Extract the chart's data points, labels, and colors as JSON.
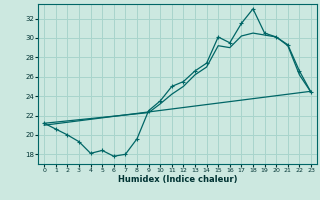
{
  "xlabel": "Humidex (Indice chaleur)",
  "bg_color": "#cce8e0",
  "grid_color": "#a8d4cc",
  "line_color": "#006666",
  "xlim": [
    -0.5,
    23.5
  ],
  "ylim": [
    17.0,
    33.5
  ],
  "yticks": [
    18,
    20,
    22,
    24,
    26,
    28,
    30,
    32
  ],
  "xticks": [
    0,
    1,
    2,
    3,
    4,
    5,
    6,
    7,
    8,
    9,
    10,
    11,
    12,
    13,
    14,
    15,
    16,
    17,
    18,
    19,
    20,
    21,
    22,
    23
  ],
  "main_x": [
    0,
    1,
    2,
    3,
    4,
    5,
    6,
    7,
    8,
    9,
    10,
    11,
    12,
    13,
    14,
    15,
    16,
    17,
    18,
    19,
    20,
    21,
    22,
    23
  ],
  "main_y": [
    21.2,
    20.6,
    20.0,
    19.3,
    18.1,
    18.4,
    17.8,
    18.0,
    19.6,
    22.5,
    23.5,
    25.0,
    25.5,
    26.6,
    27.4,
    30.1,
    29.5,
    31.5,
    33.0,
    30.5,
    30.1,
    29.3,
    26.6,
    24.4
  ],
  "envelope_x": [
    0,
    9,
    10,
    11,
    12,
    13,
    14,
    15,
    16,
    17,
    18,
    19,
    20,
    21,
    22,
    23
  ],
  "envelope_y": [
    21.2,
    22.3,
    23.2,
    24.2,
    25.0,
    26.2,
    27.0,
    29.2,
    29.0,
    30.2,
    30.5,
    30.3,
    30.1,
    29.2,
    26.2,
    24.4
  ],
  "trend_x": [
    0,
    23
  ],
  "trend_y": [
    21.0,
    24.5
  ]
}
